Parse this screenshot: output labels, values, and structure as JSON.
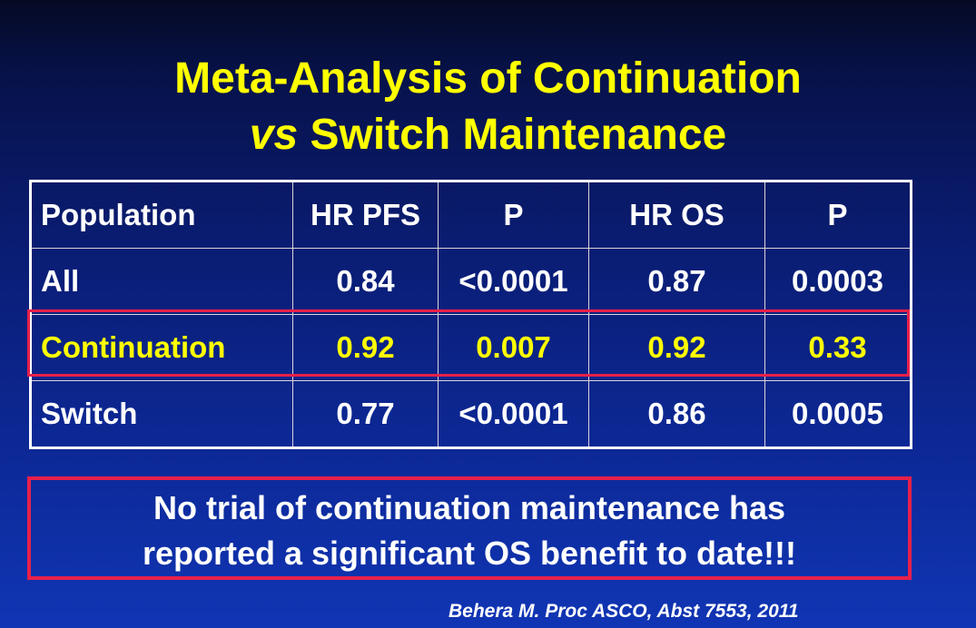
{
  "slide": {
    "title_line1": "Meta-Analysis of Continuation",
    "title_vs": "vs",
    "title_line2_rest": " Switch Maintenance",
    "table": {
      "headers": [
        "Population",
        "HR PFS",
        "P",
        "HR OS",
        "P"
      ],
      "rows": [
        [
          "All",
          "0.84",
          "<0.0001",
          "0.87",
          "0.0003"
        ],
        [
          "Continuation",
          "0.92",
          "0.007",
          "0.92",
          "0.33"
        ],
        [
          "Switch",
          "0.77",
          "<0.0001",
          "0.86",
          "0.0005"
        ]
      ]
    },
    "note_line1": "No trial of continuation maintenance has",
    "note_line2": "reported a significant OS benefit to date!!!",
    "citation": "Behera M. Proc ASCO, Abst 7553, 2011",
    "colors": {
      "title": "#ffff00",
      "highlight_row_text": "#ffff00",
      "highlight_border": "#e8204a",
      "text": "#ffffff",
      "background": "#0a1d74"
    }
  }
}
